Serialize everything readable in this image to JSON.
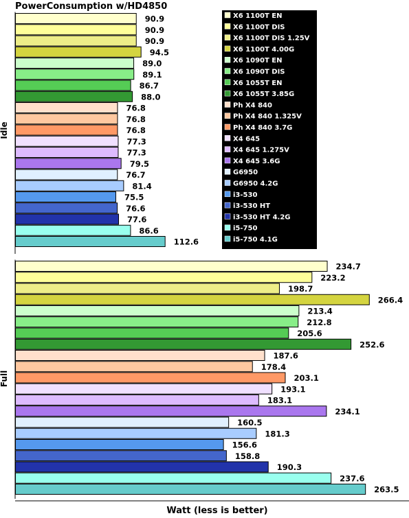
{
  "chart_data": {
    "type": "bar",
    "orientation": "horizontal",
    "title": "PowerConsumption w/HD4850",
    "xlabel": "Watt (less is better)",
    "categories": [
      "X6 1100T EN",
      "X6 1100T DIS",
      "X6 1100T DIS 1.25V",
      "X6 1100T 4.00G",
      "X6 1090T EN",
      "X6 1090T DIS",
      "X6 1055T EN",
      "X6 1055T 3.85G",
      "Ph X4 840",
      "Ph X4 840 1.325V",
      "Ph X4 840 3.7G",
      "X4 645",
      "X4 645 1.275V",
      "X4 645 3.6G",
      "G6950",
      "G6950 4.2G",
      "i3-530",
      "i3-530 HT",
      "i3-530 HT 4.2G",
      "i5-750",
      "i5-750 4.1G"
    ],
    "colors": [
      "#ffffcc",
      "#ffff99",
      "#eeee88",
      "#d4d440",
      "#ccffcc",
      "#88ee88",
      "#55cc55",
      "#339933",
      "#ffe0cc",
      "#ffc8a0",
      "#ff9966",
      "#f0e0ff",
      "#ddbbff",
      "#aa77ee",
      "#e0f0ff",
      "#a8ccff",
      "#5599ee",
      "#4466cc",
      "#2233aa",
      "#99ffee",
      "#66cccc"
    ],
    "panels": [
      {
        "label": "Idle",
        "values": [
          90.9,
          90.9,
          90.9,
          94.5,
          89.0,
          89.1,
          86.7,
          88.0,
          76.8,
          76.8,
          76.8,
          77.3,
          77.3,
          79.5,
          76.7,
          81.4,
          75.5,
          76.6,
          77.6,
          86.6,
          112.6
        ],
        "value_labels": [
          "90.9",
          "90.9",
          "90.9",
          "94.5",
          "89.0",
          "89.1",
          "86.7",
          "88.0",
          "76.8",
          "76.8",
          "76.8",
          "77.3",
          "77.3",
          "79.5",
          "76.7",
          "81.4",
          "75.5",
          "76.6",
          "77.6",
          "86.6",
          "112.6"
        ]
      },
      {
        "label": "Full",
        "values": [
          234.7,
          223.2,
          198.7,
          266.4,
          213.4,
          212.8,
          205.6,
          252.6,
          187.6,
          178.4,
          203.1,
          193.1,
          183.1,
          234.1,
          160.5,
          181.3,
          156.6,
          158.8,
          190.3,
          237.6,
          263.5
        ],
        "value_labels": [
          "234.7",
          "223.2",
          "198.7",
          "266.4",
          "213.4",
          "212.8",
          "205.6",
          "252.6",
          "187.6",
          "178.4",
          "203.1",
          "193.1",
          "183.1",
          "234.1",
          "160.5",
          "181.3",
          "156.6",
          "158.8",
          "190.3",
          "237.6",
          "263.5"
        ]
      }
    ],
    "legend_position": "top-right",
    "grid": false
  }
}
